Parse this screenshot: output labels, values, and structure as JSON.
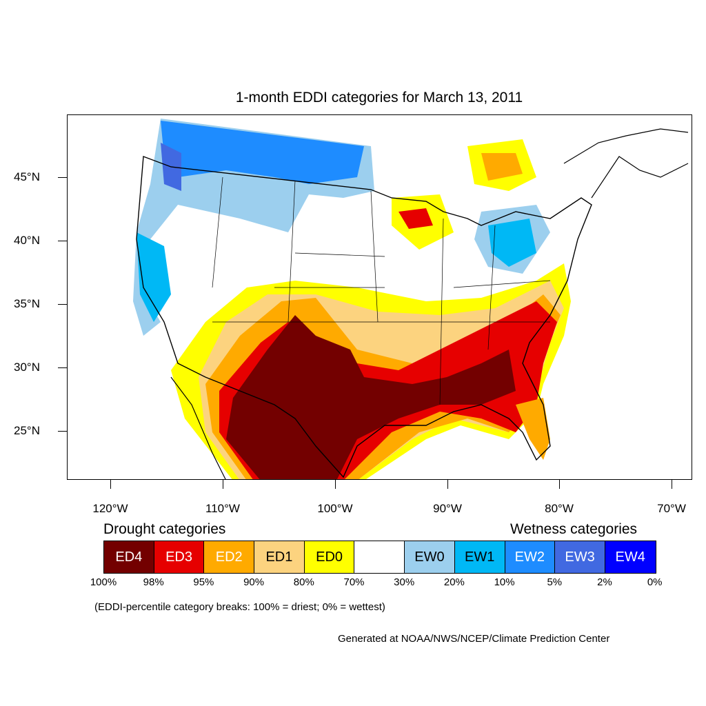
{
  "title": "1-month EDDI categories for March 13, 2011",
  "lat_labels": [
    "45°N",
    "40°N",
    "35°N",
    "30°N",
    "25°N"
  ],
  "lon_labels": [
    "120°W",
    "110°W",
    "100°W",
    "90°W",
    "80°W",
    "70°W"
  ],
  "legend": {
    "drought_heading": "Drought categories",
    "wetness_heading": "Wetness categories",
    "categories": [
      {
        "label": "ED4",
        "color": "#730000"
      },
      {
        "label": "ED3",
        "color": "#e60000"
      },
      {
        "label": "ED2",
        "color": "#ffaa00"
      },
      {
        "label": "ED1",
        "color": "#fcd37f"
      },
      {
        "label": "ED0",
        "color": "#ffff00"
      },
      {
        "label": "",
        "color": "#ffffff"
      },
      {
        "label": "EW0",
        "color": "#9ccfee"
      },
      {
        "label": "EW1",
        "color": "#00b8f5"
      },
      {
        "label": "EW2",
        "color": "#1e8cff"
      },
      {
        "label": "EW3",
        "color": "#4169e1"
      },
      {
        "label": "EW4",
        "color": "#0000ff"
      }
    ],
    "percent_breaks": [
      "100%",
      "98%",
      "95%",
      "90%",
      "80%",
      "70%",
      "30%",
      "20%",
      "10%",
      "5%",
      "2%",
      "0%"
    ]
  },
  "note": "(EDDI-percentile category breaks: 100% = driest; 0% = wettest)",
  "credit": "Generated at NOAA/NWS/NCEP/Climate Prediction Center"
}
